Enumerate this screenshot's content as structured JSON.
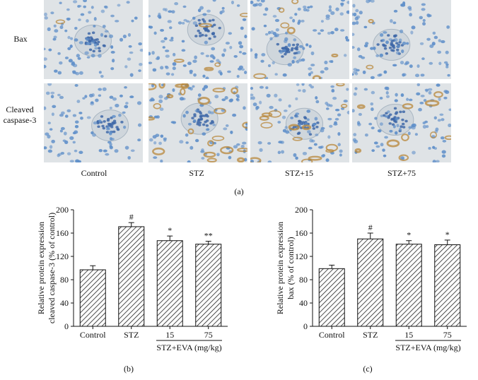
{
  "figure_a": {
    "row_labels": [
      "Bax",
      "Cleaved\ncaspase-3"
    ],
    "column_labels": [
      "Control",
      "STZ",
      "STZ+15",
      "STZ+75"
    ],
    "panel_label": "(a)",
    "stain_colors": {
      "hematoxylin": "#5f8fc9",
      "dab_brown": "#b8873a",
      "background": "#dfe3e6"
    }
  },
  "chart_data": [
    {
      "type": "bar",
      "panel_label": "(b)",
      "categories": [
        "Control",
        "STZ",
        "15",
        "75"
      ],
      "values": [
        97,
        171,
        147,
        141
      ],
      "errors": [
        7,
        7,
        8,
        5
      ],
      "significance": [
        "",
        "#",
        "*",
        "**"
      ],
      "ylabel_line1": "Relative protein expression",
      "ylabel_line2": "cleaved caspase-3 (% of control)",
      "ylim": [
        0,
        200
      ],
      "yticks": [
        "0",
        "40",
        "80",
        "120",
        "160",
        "200"
      ],
      "group_label": "STZ+EVA (mg/kg)",
      "grid": false,
      "bar_fill": "hatched"
    },
    {
      "type": "bar",
      "panel_label": "(c)",
      "categories": [
        "Control",
        "STZ",
        "15",
        "75"
      ],
      "values": [
        99,
        150,
        141,
        140
      ],
      "errors": [
        6,
        10,
        6,
        8
      ],
      "significance": [
        "",
        "#",
        "*",
        "*"
      ],
      "ylabel_line1": "Relative protein expression",
      "ylabel_line2": "bax (% of control)",
      "ylim": [
        0,
        200
      ],
      "yticks": [
        "0",
        "40",
        "80",
        "120",
        "160",
        "200"
      ],
      "group_label": "STZ+EVA (mg/kg)",
      "grid": false,
      "bar_fill": "hatched"
    }
  ]
}
